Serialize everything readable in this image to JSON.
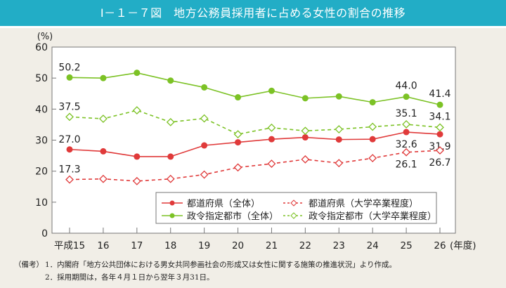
{
  "title": "Ⅰ－１－７図　地方公務員採用者に占める女性の割合の推移",
  "chart_data": {
    "type": "line",
    "title": "Ⅰ－１－７図　地方公務員採用者に占める女性の割合の推移",
    "ylabel": "(%)",
    "xlabel": "(年度)",
    "ylim": [
      0,
      60
    ],
    "yticks": [
      0,
      10,
      20,
      30,
      40,
      50,
      60
    ],
    "categories": [
      "平成15",
      "16",
      "17",
      "18",
      "19",
      "20",
      "21",
      "22",
      "23",
      "24",
      "25",
      "26"
    ],
    "grid": false,
    "legend_position": "bottom-center",
    "series": [
      {
        "name": "都道府県（全体）",
        "color": "#e03a3a",
        "style": "solid",
        "marker": "filled-circle",
        "values": [
          27.0,
          26.4,
          24.7,
          24.7,
          28.3,
          29.3,
          30.3,
          30.9,
          30.2,
          30.3,
          32.6,
          31.9
        ],
        "labels": {
          "0": "27.0",
          "10": "32.6",
          "11": "31.9"
        }
      },
      {
        "name": "都道府県（大学卒業程度）",
        "color": "#e03a3a",
        "style": "dashed",
        "marker": "open-diamond",
        "values": [
          17.3,
          17.5,
          16.8,
          17.5,
          18.9,
          21.2,
          22.4,
          23.8,
          22.6,
          24.2,
          26.1,
          26.7
        ],
        "labels": {
          "0": "17.3",
          "10": "26.1",
          "11": "26.7"
        }
      },
      {
        "name": "政令指定都市（全体）",
        "color": "#7cc225",
        "style": "solid",
        "marker": "filled-circle",
        "values": [
          50.2,
          50.0,
          51.7,
          49.2,
          47.0,
          43.8,
          45.9,
          43.5,
          44.1,
          42.2,
          44.0,
          41.4
        ],
        "labels": {
          "0": "50.2",
          "10": "44.0",
          "11": "41.4"
        }
      },
      {
        "name": "政令指定都市（大学卒業程度）",
        "color": "#7cc225",
        "style": "dashed",
        "marker": "open-diamond",
        "values": [
          37.5,
          36.9,
          39.6,
          35.8,
          37.0,
          31.9,
          34.0,
          33.0,
          33.5,
          34.3,
          35.1,
          34.1
        ],
        "labels": {
          "0": "37.5",
          "10": "35.1",
          "11": "34.1"
        }
      }
    ]
  },
  "notes": {
    "label": "（備考）",
    "items": [
      "1．内閣府「地方公共団体における男女共同参画社会の形成又は女性に関する施策の推進状況」より作成。",
      "2．採用期間は，各年４月１日から翌年３月31日。"
    ]
  }
}
